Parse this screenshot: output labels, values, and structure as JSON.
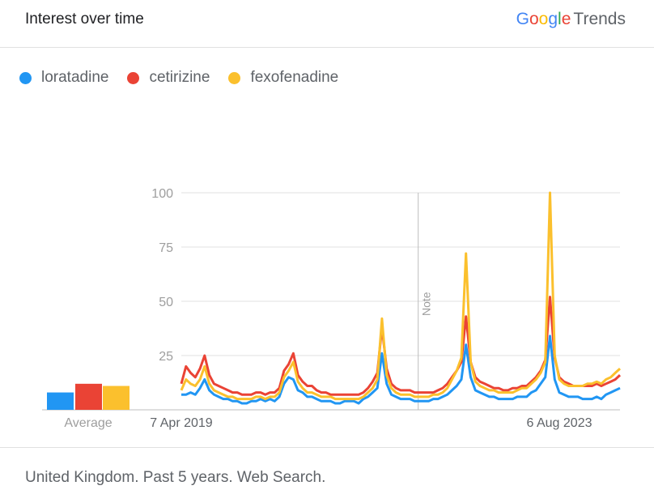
{
  "header": {
    "title": "Interest over time",
    "brand_letters": [
      "G",
      "o",
      "o",
      "g",
      "l",
      "e"
    ],
    "brand_suffix": "Trends"
  },
  "footer": {
    "text": "United Kingdom. Past 5 years. Web Search."
  },
  "chart_data": {
    "type": "line",
    "title": "Interest over time",
    "x_tick_labels": [
      "7 Apr 2019",
      "6 Aug 2023"
    ],
    "y_ticks": [
      25,
      50,
      75,
      100
    ],
    "ylim": [
      0,
      100
    ],
    "grid": true,
    "legend_position": "top-left",
    "annotation": {
      "label": "Note",
      "x_fraction": 0.54
    },
    "average_label": "Average",
    "averages": [
      8,
      12,
      11
    ],
    "series": [
      {
        "name": "loratadine",
        "color": "#2196f3",
        "values": [
          7,
          7,
          8,
          7,
          10,
          14,
          9,
          7,
          6,
          5,
          5,
          4,
          4,
          3,
          3,
          4,
          4,
          5,
          4,
          5,
          4,
          6,
          12,
          15,
          14,
          9,
          8,
          6,
          6,
          5,
          4,
          4,
          4,
          3,
          3,
          4,
          4,
          4,
          3,
          5,
          6,
          8,
          10,
          26,
          12,
          7,
          6,
          5,
          5,
          5,
          4,
          4,
          4,
          4,
          5,
          5,
          6,
          7,
          9,
          11,
          14,
          30,
          15,
          9,
          8,
          7,
          6,
          6,
          5,
          5,
          5,
          5,
          6,
          6,
          6,
          8,
          9,
          12,
          15,
          34,
          14,
          8,
          7,
          6,
          6,
          6,
          5,
          5,
          5,
          6,
          5,
          7,
          8,
          9,
          10
        ]
      },
      {
        "name": "cetirizine",
        "color": "#ea4335",
        "values": [
          12,
          20,
          17,
          15,
          19,
          25,
          16,
          12,
          11,
          10,
          9,
          8,
          8,
          7,
          7,
          7,
          8,
          8,
          7,
          8,
          8,
          10,
          18,
          21,
          26,
          16,
          13,
          11,
          11,
          9,
          8,
          8,
          7,
          7,
          7,
          7,
          7,
          7,
          7,
          8,
          10,
          13,
          17,
          38,
          19,
          12,
          10,
          9,
          9,
          9,
          8,
          8,
          8,
          8,
          8,
          9,
          10,
          12,
          15,
          18,
          22,
          43,
          22,
          15,
          13,
          12,
          11,
          10,
          10,
          9,
          9,
          10,
          10,
          11,
          11,
          13,
          15,
          18,
          23,
          52,
          24,
          15,
          13,
          12,
          11,
          11,
          11,
          11,
          11,
          12,
          11,
          12,
          13,
          14,
          16
        ]
      },
      {
        "name": "fexofenadine",
        "color": "#fbc02d",
        "values": [
          9,
          14,
          12,
          11,
          14,
          20,
          12,
          9,
          8,
          7,
          6,
          6,
          5,
          5,
          5,
          5,
          6,
          6,
          5,
          6,
          6,
          8,
          15,
          18,
          22,
          13,
          10,
          8,
          8,
          7,
          6,
          6,
          6,
          5,
          5,
          5,
          5,
          5,
          5,
          6,
          8,
          10,
          14,
          42,
          16,
          10,
          8,
          7,
          7,
          7,
          6,
          6,
          6,
          6,
          7,
          7,
          8,
          10,
          14,
          18,
          24,
          72,
          22,
          13,
          11,
          10,
          9,
          9,
          8,
          8,
          8,
          8,
          9,
          10,
          10,
          12,
          14,
          17,
          22,
          100,
          25,
          14,
          12,
          11,
          11,
          11,
          11,
          12,
          12,
          13,
          12,
          14,
          15,
          17,
          19
        ]
      }
    ]
  }
}
